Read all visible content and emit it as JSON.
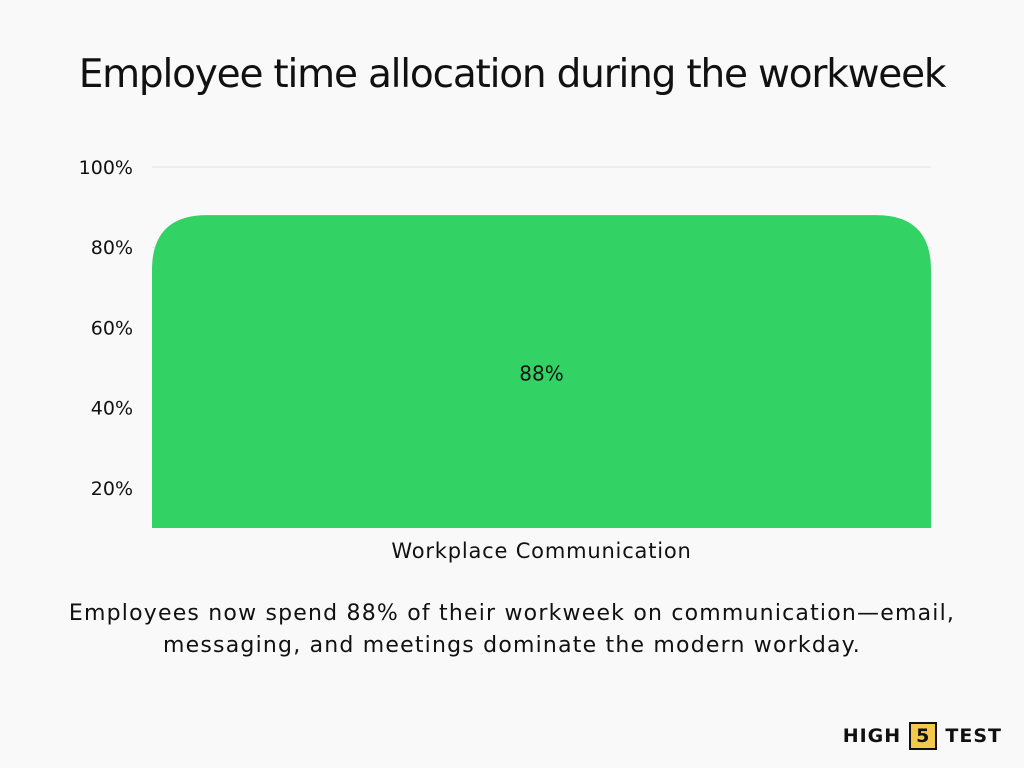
{
  "chart_data": {
    "type": "bar",
    "title": "Employee time allocation during the workweek",
    "categories": [
      "Workplace Communication"
    ],
    "values": [
      88
    ],
    "data_labels": [
      "88%"
    ],
    "yticks": [
      "20%",
      "40%",
      "60%",
      "80%",
      "100%"
    ],
    "ytick_values": [
      20,
      40,
      60,
      80,
      100
    ],
    "ylim": [
      10,
      100
    ],
    "grid": true,
    "legend": "none",
    "bar_color": "#32d264",
    "xlabel": "",
    "ylabel": ""
  },
  "caption": "Employees now spend 88% of their workweek on communication—email, messaging, and meetings dominate the modern workday.",
  "logo": {
    "left": "HIGH",
    "middle": "5",
    "right": "TEST",
    "accent_color": "#f2c94c"
  }
}
